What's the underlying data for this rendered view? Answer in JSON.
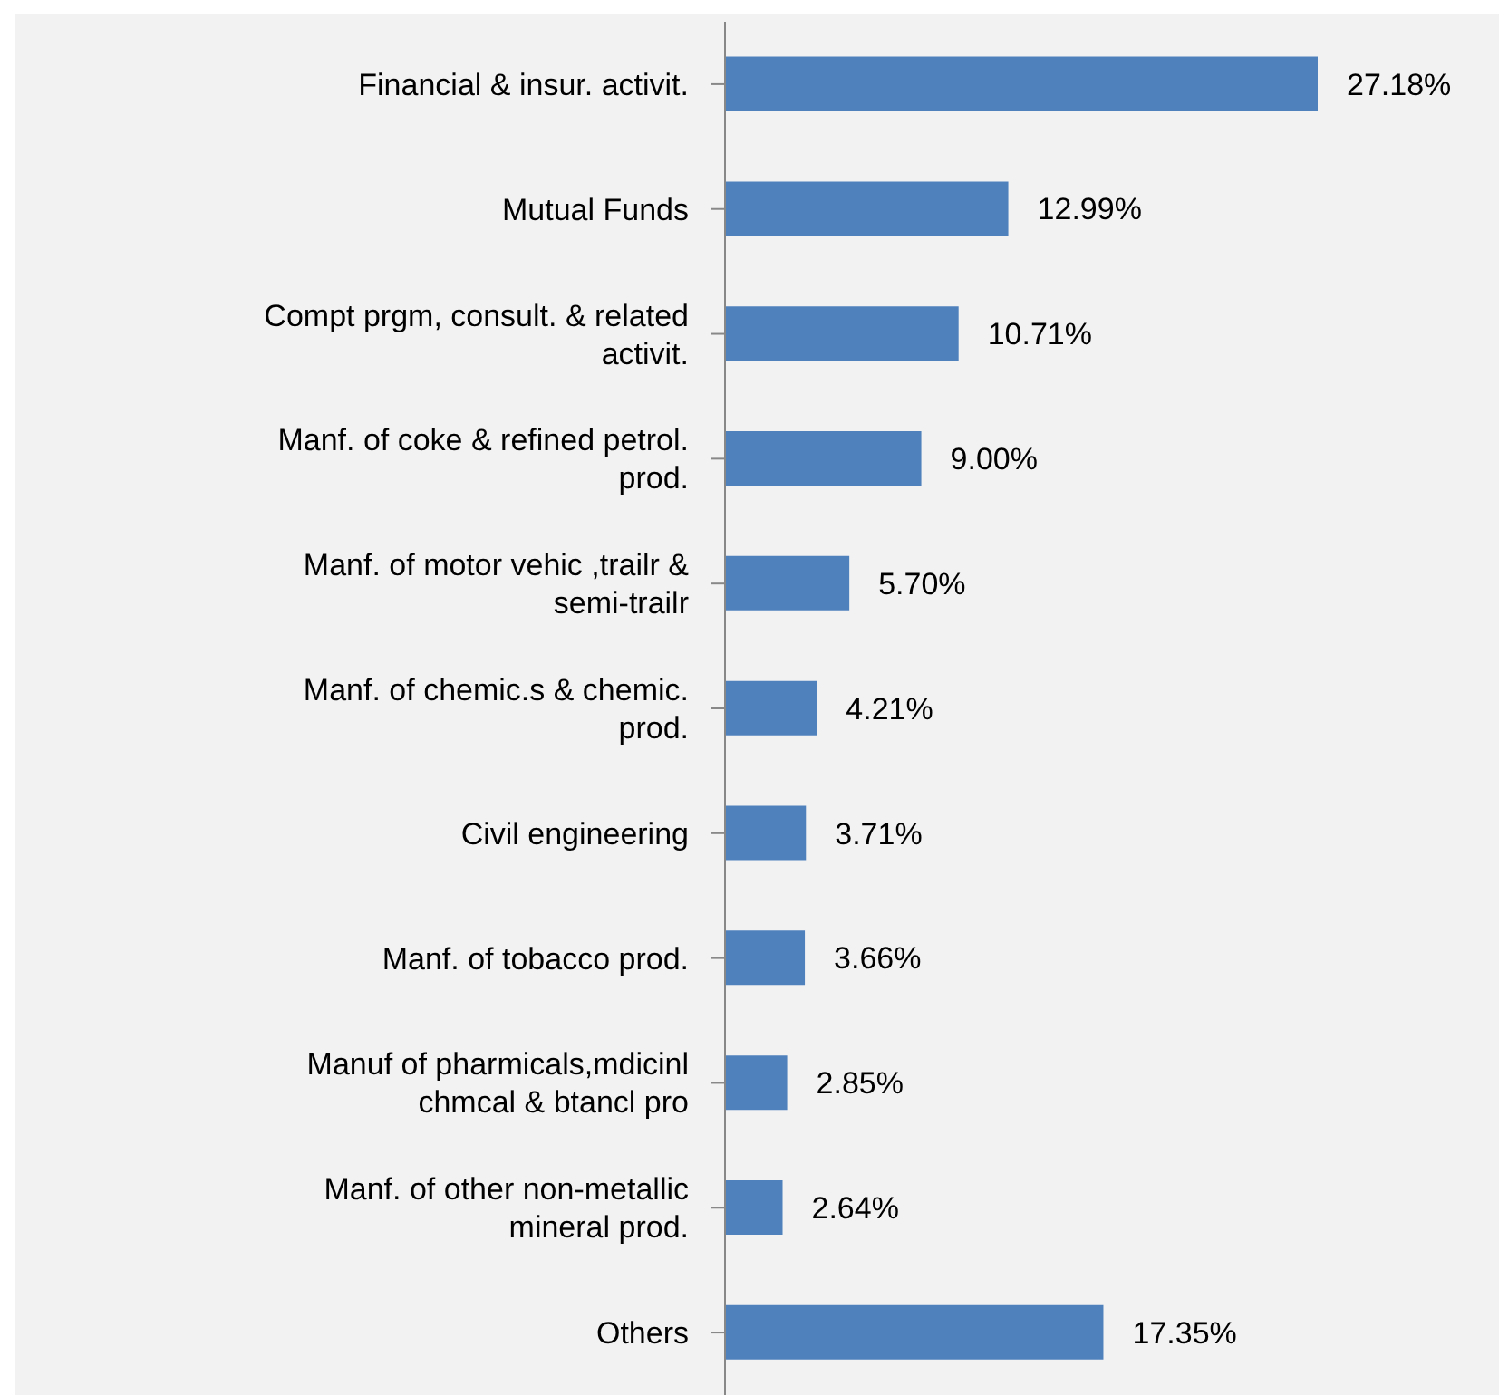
{
  "chart_data": {
    "type": "bar",
    "orientation": "horizontal",
    "categories": [
      "Financial & insur. activit.",
      "Mutual Funds",
      "Compt prgm, consult. & related activit.",
      "Manf. of coke & refined petrol. prod.",
      "Manf. of motor vehic ,trailr & semi-trailr",
      "Manf. of chemic.s & chemic. prod.",
      "Civil engineering",
      "Manf. of tobacco prod.",
      "Manuf of pharmicals,mdicinl chmcal & btancl pro",
      "Manf. of other non-metallic mineral prod.",
      "Others"
    ],
    "values": [
      27.18,
      12.99,
      10.71,
      9.0,
      5.7,
      4.21,
      3.71,
      3.66,
      2.85,
      2.64,
      17.35
    ],
    "value_labels": [
      "27.18%",
      "12.99%",
      "10.71%",
      "9.00%",
      "5.70%",
      "4.21%",
      "3.71%",
      "3.66%",
      "2.85%",
      "2.64%",
      "17.35%"
    ],
    "color": "#4f81bd"
  }
}
